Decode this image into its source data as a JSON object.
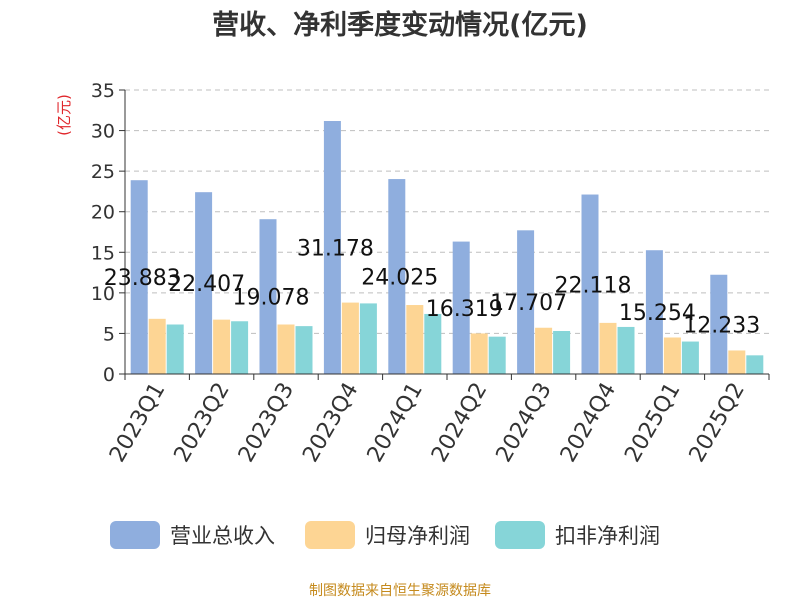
{
  "title": "营收、净利季度变动情况(亿元)",
  "unit_label": "(亿元)",
  "source": "制图数据来自恒生聚源数据库",
  "chart_data": {
    "type": "bar",
    "title": "营收、净利季度变动情况(亿元)",
    "ylabel": "(亿元)",
    "xlabel": "",
    "ylim": [
      0,
      35
    ],
    "yticks": [
      0,
      5,
      10,
      15,
      20,
      25,
      30,
      35
    ],
    "grid": true,
    "legend_position": "bottom",
    "categories": [
      "2023Q1",
      "2023Q2",
      "2023Q3",
      "2023Q4",
      "2024Q1",
      "2024Q2",
      "2024Q3",
      "2024Q4",
      "2025Q1",
      "2025Q2"
    ],
    "series": [
      {
        "name": "营业总收入",
        "color": "#8faede",
        "labeled": true,
        "values": [
          23.883,
          22.407,
          19.078,
          31.178,
          24.025,
          16.319,
          17.707,
          22.118,
          15.254,
          12.233
        ],
        "labels": [
          "23.883",
          "22.407",
          "19.078",
          "31.178",
          "24.025",
          "16.319",
          "17.707",
          "22.118",
          "15.254",
          "12.233"
        ]
      },
      {
        "name": "归母净利润",
        "color": "#fdd594",
        "labeled": false,
        "values": [
          6.8,
          6.7,
          6.1,
          8.8,
          8.5,
          5.0,
          5.7,
          6.3,
          4.5,
          2.9
        ]
      },
      {
        "name": "扣非净利润",
        "color": "#86d5d8",
        "labeled": false,
        "values": [
          6.1,
          6.5,
          5.9,
          8.7,
          7.4,
          4.6,
          5.3,
          5.8,
          4.0,
          2.3
        ]
      }
    ]
  }
}
